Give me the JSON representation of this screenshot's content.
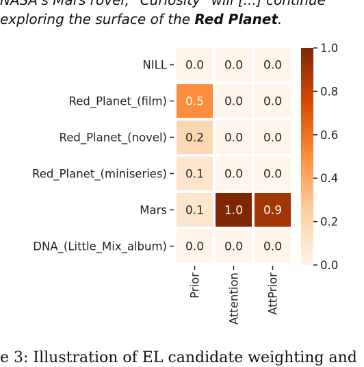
{
  "caption_top": {
    "line1": "NASA's Mars rover, \"Curiosity\" will [...] continue",
    "line2_prefix": "exploring the surface of the ",
    "line2_bold": "Red Planet",
    "line2_suffix": "."
  },
  "caption_bottom": "e 3: Illustration of EL candidate weighting and",
  "chart_data": {
    "type": "heatmap",
    "title": "",
    "xlabel": "",
    "ylabel": "",
    "rows": [
      "NILL",
      "Red_Planet_(film)",
      "Red_Planet_(novel)",
      "Red_Planet_(miniseries)",
      "Mars",
      "DNA_(Little_Mix_album)"
    ],
    "columns": [
      "Prior",
      "Attention",
      "AttPrior"
    ],
    "values": [
      [
        0.0,
        0.0,
        0.0
      ],
      [
        0.5,
        0.0,
        0.0
      ],
      [
        0.2,
        0.0,
        0.0
      ],
      [
        0.1,
        0.0,
        0.0
      ],
      [
        0.1,
        1.0,
        0.9
      ],
      [
        0.0,
        0.0,
        0.0
      ]
    ],
    "colorbar": {
      "min": 0.0,
      "max": 1.0,
      "ticks": [
        "0.0",
        "0.2",
        "0.4",
        "0.6",
        "0.8",
        "1.0"
      ]
    },
    "colormap": {
      "low": "#fff5eb",
      "mid": "#fd8d3c",
      "high": "#7f2704"
    }
  }
}
